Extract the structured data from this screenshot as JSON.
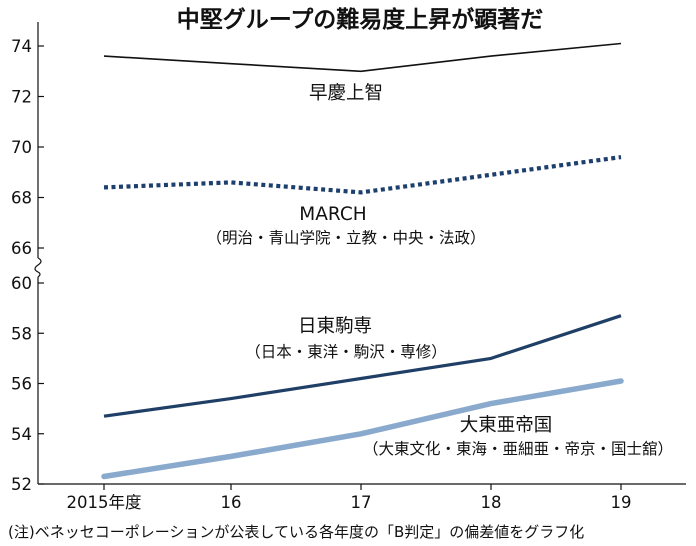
{
  "chart_data": {
    "type": "line",
    "title": "中堅グループの難易度上昇が顕著だ",
    "categories": [
      "2015年度",
      "16",
      "17",
      "18",
      "19"
    ],
    "upper_y_ticks": [
      74,
      72,
      70,
      68,
      66
    ],
    "lower_y_ticks": [
      60,
      58,
      56,
      54,
      52
    ],
    "upper_ylim": [
      65.5,
      74.8
    ],
    "lower_ylim": [
      52,
      60.3
    ],
    "axis_break": true,
    "grid": false,
    "legend": "inline-labels",
    "series": [
      {
        "name": "早慶上智",
        "sub": "",
        "panel": "upper",
        "style": "solid-thin",
        "color": "#111111",
        "values": [
          73.6,
          73.3,
          73.0,
          73.6,
          74.1
        ]
      },
      {
        "name": "MARCH",
        "sub": "（明治・青山学院・立教・中央・法政）",
        "panel": "upper",
        "style": "dotted",
        "color": "#1d3f6e",
        "values": [
          68.4,
          68.6,
          68.2,
          68.9,
          69.6
        ]
      },
      {
        "name": "日東駒専",
        "sub": "（日本・東洋・駒沢・専修）",
        "panel": "lower",
        "style": "solid-thick",
        "color": "#1f3f66",
        "values": [
          54.7,
          55.4,
          56.2,
          57.0,
          58.7
        ]
      },
      {
        "name": "大東亜帝国",
        "sub": "（大東文化・東海・亜細亜・帝京・国士舘）",
        "panel": "lower",
        "style": "solid-heavy",
        "color": "#8aaacd",
        "values": [
          52.3,
          53.1,
          54.0,
          55.2,
          56.1
        ]
      }
    ],
    "note": "(注)ベネッセコーポレーションが公表している各年度の「B判定」の偏差値をグラフ化"
  }
}
